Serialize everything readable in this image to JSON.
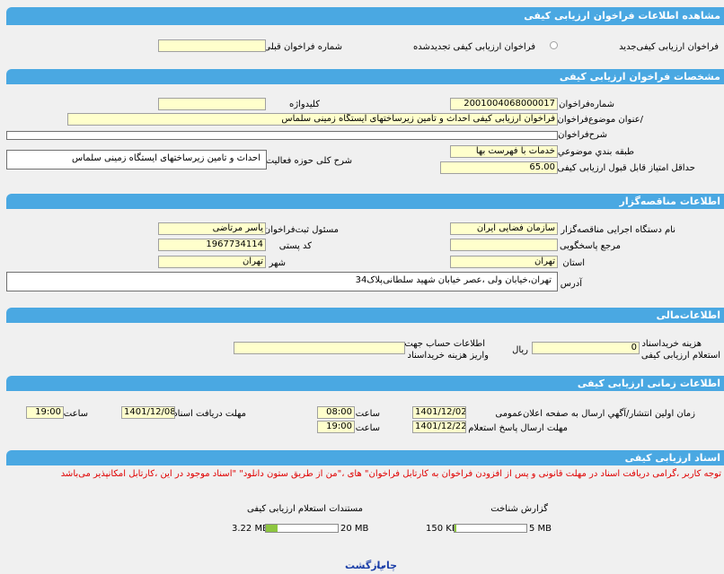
{
  "header": {
    "title": "مشاهده اطلاعات فراخوان ارزیابی کیفی"
  },
  "type_row": {
    "new_label": "فراخوان ارزیابی کیفی‌جدید",
    "renewed_label": "فراخوان ارزیابی کیفی تجدیدشده",
    "prev_number_label": "شماره فراخوان قبلی",
    "prev_number_value": ""
  },
  "spec": {
    "title": "مشخصات فراخوان ارزیابی کیفی",
    "number_label": "شماره‌فراخوان",
    "number_value": "2001004068000017",
    "keyword_label": "کلیدواژه",
    "keyword_value": "",
    "subject_label": "/عنوان موضوع‌فراخوان",
    "subject_value": "فراخوان ارزیابی کیفی احداث و تامین زیرساختهای ایستگاه زمینی سلماس",
    "desc_label": "شرح‌فراخوان",
    "desc_value": "",
    "category_label": "طبقه بندي موضوعي",
    "category_value": "خدمات با فهرست بها",
    "scope_label": "شرح کلی حوزه فعالیت",
    "scope_value": "احداث و تامین زیرساختهای ایستگاه زمینی سلماس",
    "min_score_label": "حداقل امتیاز قابل قبول ارزیابی کیفی",
    "min_score_value": "65.00"
  },
  "org": {
    "title": "اطلاعات مناقصه‌گزار",
    "agency_label": "نام دستگاه اجرایی مناقصه‌گزار",
    "agency_value": "سازمان فضایی ایران",
    "registrar_label": "مسئول ثبت‌فراخوان",
    "registrar_value": "یاسر مرتاضی",
    "ref_label": "مرجع پاسخگویی",
    "ref_value": "",
    "postal_label": "کد پستی",
    "postal_value": "1967734114",
    "province_label": "استان",
    "province_value": "تهران",
    "city_label": "شهر",
    "city_value": "تهران",
    "address_label": "آدرس",
    "address_value": "تهران،خیابان ولی ،عصر خیابان شهید سلطانی‌پلاک34"
  },
  "finance": {
    "title": "اطلاعات‌مالی",
    "fee_label_1": "هزینه خرید‌اسناد",
    "fee_label_2": "استعلام ارزیابی کیفی",
    "fee_value": "0",
    "fee_unit": "ریال",
    "account_label_1": "اطلاعات حساب جهت",
    "account_label_2": "واریز هزینه خرید‌اسناد",
    "account_value": ""
  },
  "timing": {
    "title": "اطلاعات زمانی ارزیابی کیفی",
    "publish_label": "زمان اولین انتشار/آگهي ارسال به صفحه اعلان‌عمومی",
    "publish_date": "1401/12/02",
    "publish_time": "08:00",
    "time_label": "ساعت",
    "deadline_label": "مهلت ارسال پاسخ استعلام",
    "deadline_date": "1401/12/22",
    "deadline_time": "19:00",
    "receive_label": "مهلت دریافت اسناد",
    "receive_date": "1401/12/08",
    "receive_time": "19:00"
  },
  "docs": {
    "title": "اسناد ارزیابی کیفی",
    "notice": "توجه کاربر ،گرامی دریافت اسناد در مهلت قانونی و پس از افزودن فراخوان به کارتابل فراخوان\" های ،\"من از طریق ستون دانلود\" \"اسناد موجود در این ،کارتابل امکانپذیر می‌باشد",
    "report_label": "گزارش شناخت",
    "report_size": "150 KB",
    "report_limit": "5 MB",
    "report_fraction": 0.03,
    "inquiry_label": "مستندات استعلام ارزیابی کیفی",
    "inquiry_size": "3.22 MB",
    "inquiry_limit": "20 MB",
    "inquiry_fraction": 0.16
  },
  "footer": {
    "print_label": "چاپ",
    "back_label": "بازگشت"
  }
}
